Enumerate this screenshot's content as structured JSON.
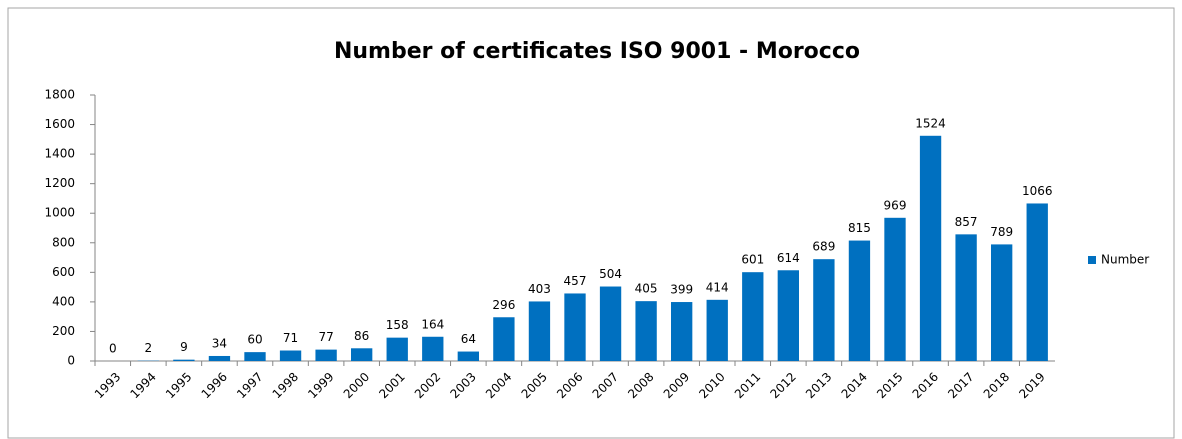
{
  "chart_data": {
    "type": "bar",
    "title": "Number of certificates ISO 9001 - Morocco",
    "categories": [
      "1993",
      "1994",
      "1995",
      "1996",
      "1997",
      "1998",
      "1999",
      "2000",
      "2001",
      "2002",
      "2003",
      "2004",
      "2005",
      "2006",
      "2007",
      "2008",
      "2009",
      "2010",
      "2011",
      "2012",
      "2013",
      "2014",
      "2015",
      "2016",
      "2017",
      "2018",
      "2019"
    ],
    "series": [
      {
        "name": "Number",
        "color": "#0070c0",
        "values": [
          0,
          2,
          9,
          34,
          60,
          71,
          77,
          86,
          158,
          164,
          64,
          296,
          403,
          457,
          504,
          405,
          399,
          414,
          601,
          614,
          689,
          815,
          969,
          1524,
          857,
          789,
          1066
        ]
      }
    ],
    "ylim": [
      0,
      1800
    ],
    "yticks": [
      0,
      200,
      400,
      600,
      800,
      1000,
      1200,
      1400,
      1600,
      1800
    ],
    "grid": false,
    "legend": "right"
  }
}
